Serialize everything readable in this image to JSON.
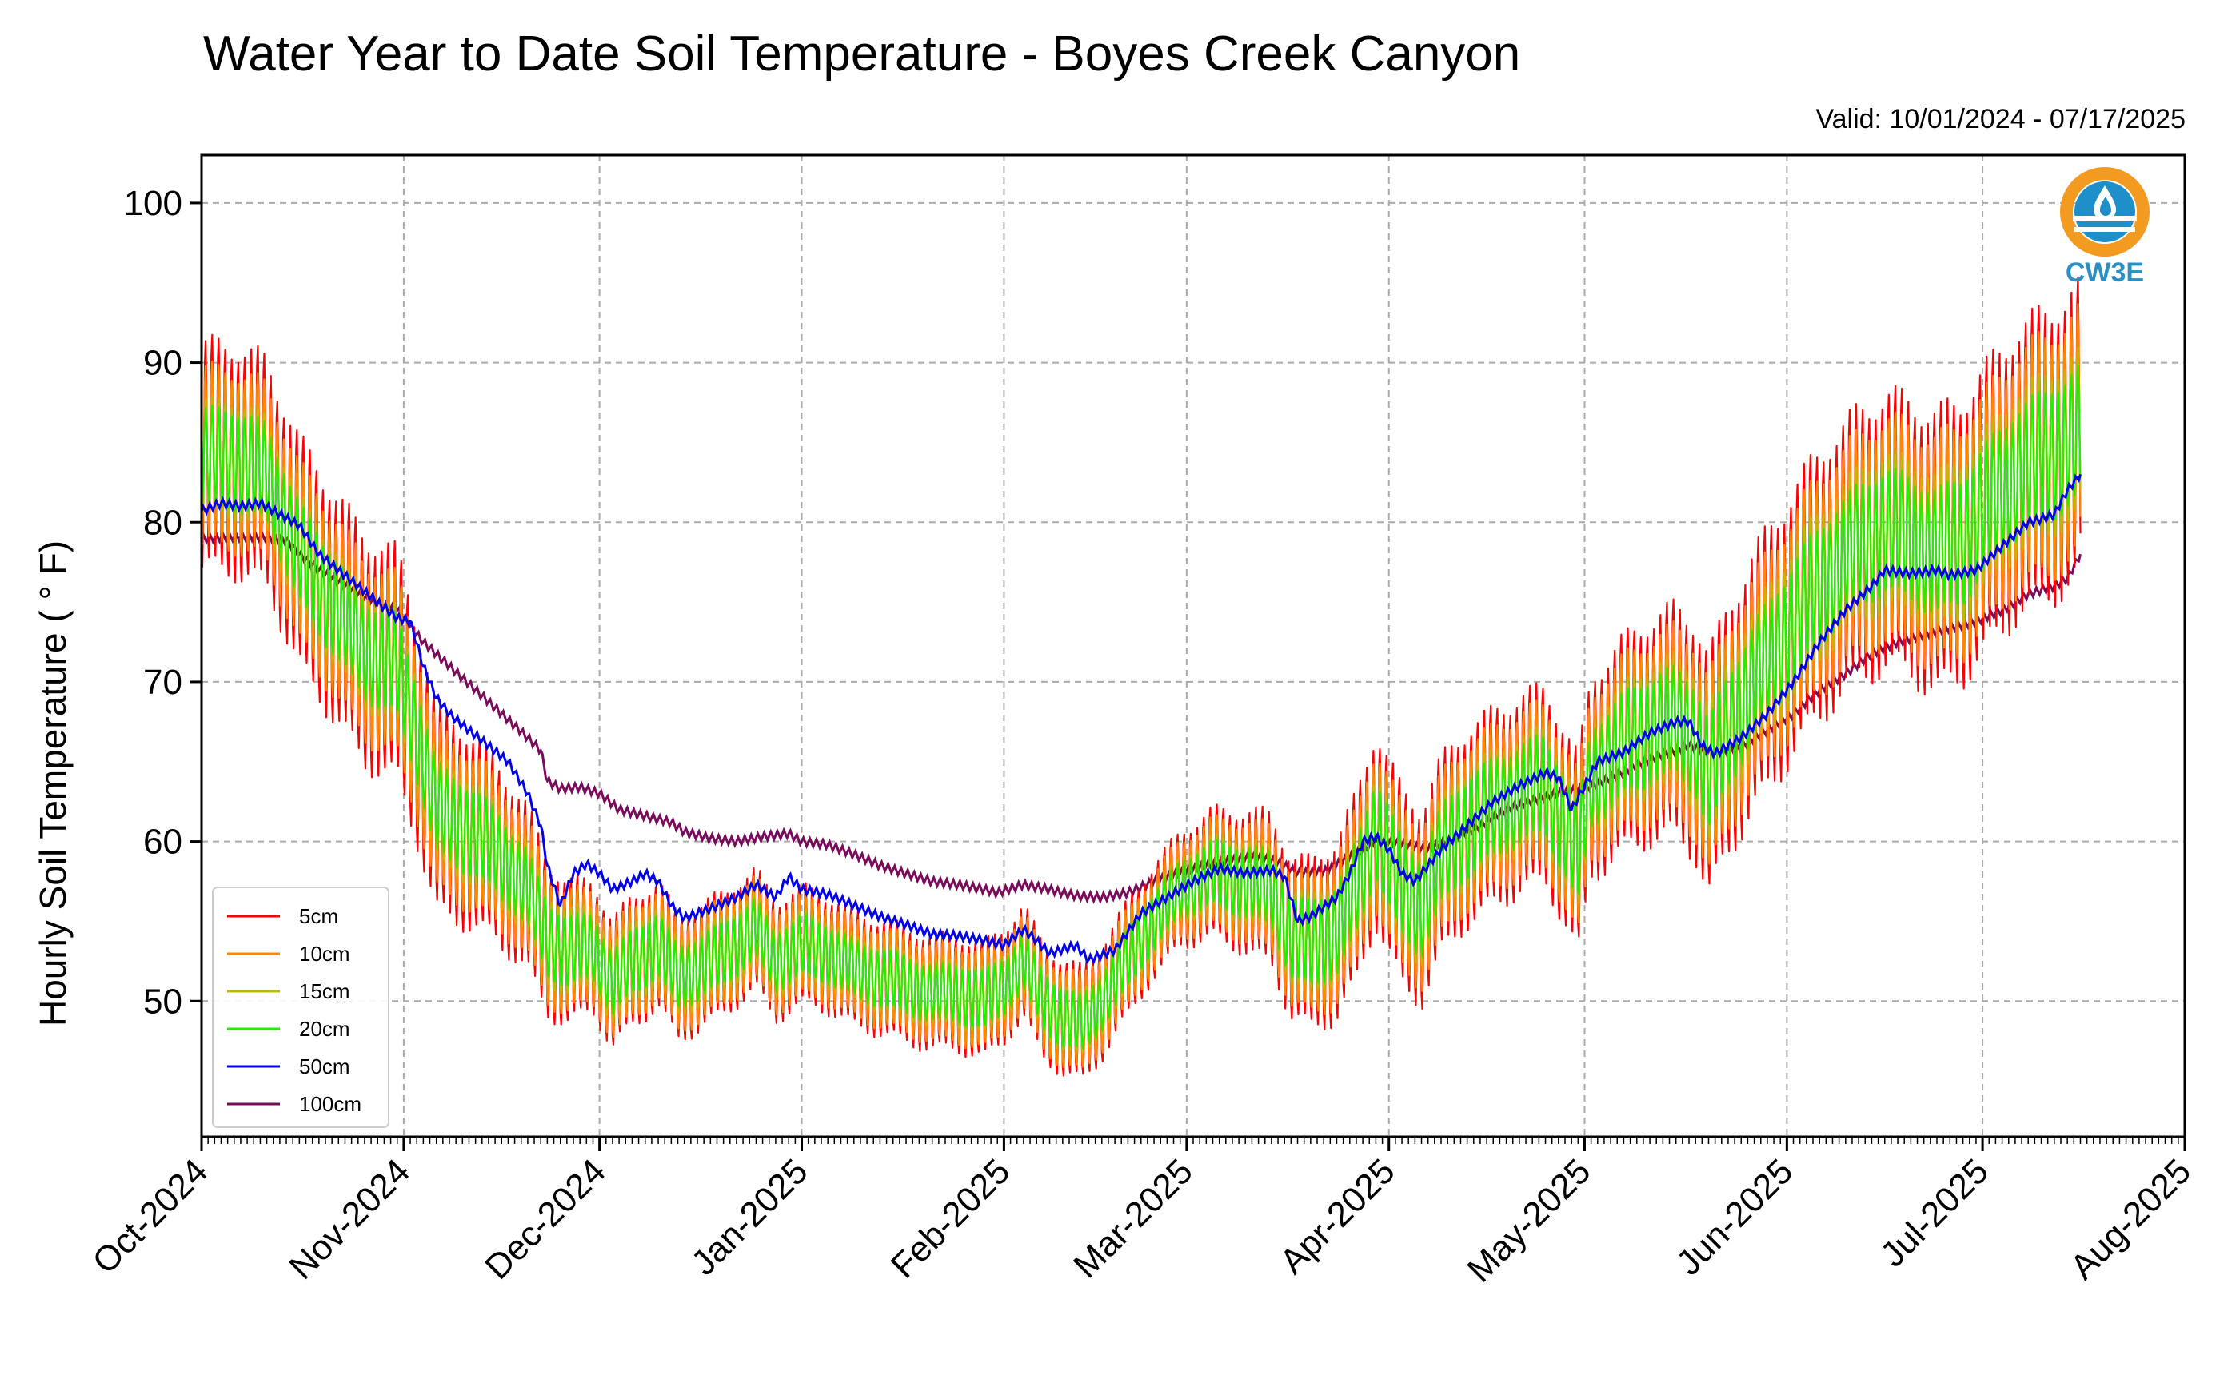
{
  "chart_data": {
    "type": "line",
    "title": "Water Year to Date Soil Temperature - Boyes Creek Canyon",
    "subtitle": "Valid: 10/01/2024 - 07/17/2025",
    "ylabel": "Hourly Soil Temperature ( ° F)",
    "xlabel": "",
    "ylim": [
      41.5,
      103
    ],
    "xlim_day": [
      0,
      304
    ],
    "yticks": [
      50,
      60,
      70,
      80,
      90,
      100
    ],
    "xtick_labels": [
      "Oct-2024",
      "Nov-2024",
      "Dec-2024",
      "Jan-2025",
      "Feb-2025",
      "Mar-2025",
      "Apr-2025",
      "May-2025",
      "Jun-2025",
      "Jul-2025",
      "Aug-2025"
    ],
    "xtick_days": [
      0,
      31,
      61,
      92,
      123,
      151,
      182,
      212,
      243,
      273,
      304
    ],
    "data_end_day": 288,
    "grid": true,
    "legend_position": "lower-left",
    "logo_text": "CW3E",
    "series": [
      {
        "name": "5cm",
        "color": "#ff0000",
        "amp": [
          [
            0,
            14
          ],
          [
            30,
            14
          ],
          [
            60,
            8
          ],
          [
            100,
            7
          ],
          [
            150,
            7
          ],
          [
            180,
            12
          ],
          [
            210,
            12
          ],
          [
            240,
            16
          ],
          [
            288,
            18
          ]
        ]
      },
      {
        "name": "10cm",
        "color": "#ff8800",
        "amp": [
          [
            0,
            11
          ],
          [
            30,
            11
          ],
          [
            60,
            7
          ],
          [
            100,
            6
          ],
          [
            150,
            6
          ],
          [
            180,
            10
          ],
          [
            210,
            10
          ],
          [
            240,
            13
          ],
          [
            288,
            15
          ]
        ]
      },
      {
        "name": "15cm",
        "color": "#bbbb00",
        "amp": [
          [
            0,
            7
          ],
          [
            30,
            7
          ],
          [
            60,
            5
          ],
          [
            100,
            4
          ],
          [
            150,
            4
          ],
          [
            180,
            7
          ],
          [
            210,
            7
          ],
          [
            240,
            9
          ],
          [
            288,
            10
          ]
        ]
      },
      {
        "name": "20cm",
        "color": "#22ee00",
        "amp": [
          [
            0,
            6
          ],
          [
            30,
            6
          ],
          [
            60,
            4
          ],
          [
            100,
            3.5
          ],
          [
            150,
            3.5
          ],
          [
            180,
            6
          ],
          [
            210,
            6
          ],
          [
            240,
            7
          ],
          [
            288,
            8
          ]
        ]
      },
      {
        "name": "50cm",
        "color": "#0000ee",
        "points": [
          [
            0,
            80.7
          ],
          [
            3,
            81.2
          ],
          [
            6,
            81.0
          ],
          [
            9,
            81.2
          ],
          [
            12,
            80.5
          ],
          [
            15,
            79.8
          ],
          [
            18,
            78.0
          ],
          [
            21,
            77.0
          ],
          [
            24,
            76.0
          ],
          [
            27,
            75.0
          ],
          [
            30,
            74.0
          ],
          [
            32,
            73.8
          ],
          [
            34,
            71.0
          ],
          [
            36,
            69.0
          ],
          [
            38,
            68.0
          ],
          [
            40,
            67.3
          ],
          [
            44,
            66.0
          ],
          [
            47,
            65.0
          ],
          [
            50,
            63.0
          ],
          [
            52,
            61.0
          ],
          [
            53,
            58.5
          ],
          [
            55,
            56.0
          ],
          [
            57,
            58.0
          ],
          [
            59,
            58.6
          ],
          [
            61,
            58.0
          ],
          [
            63,
            57.0
          ],
          [
            66,
            57.5
          ],
          [
            68,
            58.0
          ],
          [
            70,
            57.5
          ],
          [
            72,
            56.0
          ],
          [
            74,
            55.2
          ],
          [
            78,
            55.8
          ],
          [
            82,
            56.5
          ],
          [
            85,
            57.3
          ],
          [
            88,
            56.5
          ],
          [
            90,
            57.8
          ],
          [
            92,
            57.0
          ],
          [
            96,
            56.7
          ],
          [
            100,
            56.0
          ],
          [
            104,
            55.3
          ],
          [
            108,
            54.8
          ],
          [
            112,
            54.2
          ],
          [
            116,
            54.1
          ],
          [
            120,
            53.8
          ],
          [
            123,
            53.5
          ],
          [
            126,
            54.5
          ],
          [
            128,
            53.8
          ],
          [
            130,
            53.0
          ],
          [
            134,
            53.5
          ],
          [
            136,
            52.6
          ],
          [
            140,
            53.2
          ],
          [
            144,
            55.5
          ],
          [
            148,
            56.5
          ],
          [
            150,
            57.0
          ],
          [
            152,
            57.5
          ],
          [
            156,
            58.3
          ],
          [
            160,
            58.0
          ],
          [
            164,
            58.2
          ],
          [
            166,
            57.8
          ],
          [
            168,
            55.0
          ],
          [
            170,
            55.3
          ],
          [
            174,
            56.5
          ],
          [
            176,
            58.0
          ],
          [
            178,
            60.0
          ],
          [
            180,
            60.3
          ],
          [
            182,
            59.5
          ],
          [
            184,
            58.0
          ],
          [
            186,
            57.5
          ],
          [
            190,
            59.5
          ],
          [
            194,
            61.0
          ],
          [
            198,
            62.5
          ],
          [
            202,
            63.5
          ],
          [
            206,
            64.3
          ],
          [
            208,
            64.0
          ],
          [
            210,
            62.0
          ],
          [
            212,
            63.5
          ],
          [
            214,
            65.0
          ],
          [
            218,
            65.6
          ],
          [
            222,
            66.8
          ],
          [
            226,
            67.5
          ],
          [
            228,
            67.5
          ],
          [
            230,
            66.0
          ],
          [
            232,
            65.5
          ],
          [
            236,
            66.5
          ],
          [
            240,
            68.0
          ],
          [
            244,
            70.0
          ],
          [
            248,
            72.5
          ],
          [
            252,
            74.5
          ],
          [
            256,
            76.0
          ],
          [
            258,
            77.0
          ],
          [
            262,
            76.8
          ],
          [
            266,
            77.0
          ],
          [
            268,
            76.7
          ],
          [
            272,
            77.0
          ],
          [
            276,
            78.5
          ],
          [
            280,
            80.0
          ],
          [
            282,
            80.2
          ],
          [
            284,
            80.5
          ],
          [
            286,
            82.0
          ],
          [
            288,
            83.0
          ]
        ]
      },
      {
        "name": "100cm",
        "color": "#7a0a5a",
        "points": [
          [
            0,
            79.0
          ],
          [
            5,
            79.1
          ],
          [
            10,
            79.1
          ],
          [
            13,
            78.9
          ],
          [
            15,
            78.0
          ],
          [
            18,
            77.0
          ],
          [
            22,
            76.0
          ],
          [
            26,
            75.0
          ],
          [
            30,
            74.5
          ],
          [
            34,
            72.5
          ],
          [
            38,
            71.0
          ],
          [
            42,
            69.5
          ],
          [
            46,
            68.0
          ],
          [
            50,
            66.5
          ],
          [
            52,
            65.7
          ],
          [
            53,
            63.8
          ],
          [
            55,
            63.3
          ],
          [
            58,
            63.4
          ],
          [
            61,
            63.0
          ],
          [
            64,
            62.0
          ],
          [
            68,
            61.6
          ],
          [
            72,
            61.2
          ],
          [
            74,
            60.6
          ],
          [
            78,
            60.2
          ],
          [
            82,
            60.0
          ],
          [
            86,
            60.3
          ],
          [
            90,
            60.5
          ],
          [
            92,
            60.0
          ],
          [
            96,
            59.8
          ],
          [
            100,
            59.2
          ],
          [
            104,
            58.5
          ],
          [
            108,
            58.0
          ],
          [
            112,
            57.5
          ],
          [
            116,
            57.3
          ],
          [
            120,
            57.0
          ],
          [
            122,
            56.8
          ],
          [
            126,
            57.3
          ],
          [
            130,
            57.0
          ],
          [
            134,
            56.6
          ],
          [
            138,
            56.5
          ],
          [
            142,
            56.8
          ],
          [
            146,
            57.5
          ],
          [
            150,
            58.0
          ],
          [
            154,
            58.5
          ],
          [
            158,
            58.8
          ],
          [
            162,
            59.0
          ],
          [
            164,
            58.8
          ],
          [
            166,
            58.5
          ],
          [
            168,
            58.0
          ],
          [
            172,
            58.1
          ],
          [
            176,
            59.0
          ],
          [
            180,
            60.0
          ],
          [
            184,
            59.8
          ],
          [
            188,
            59.5
          ],
          [
            192,
            60.2
          ],
          [
            196,
            61.0
          ],
          [
            200,
            62.0
          ],
          [
            204,
            62.6
          ],
          [
            208,
            63.0
          ],
          [
            212,
            63.3
          ],
          [
            216,
            64.0
          ],
          [
            220,
            64.8
          ],
          [
            224,
            65.5
          ],
          [
            228,
            66.0
          ],
          [
            232,
            65.5
          ],
          [
            236,
            66.0
          ],
          [
            240,
            67.0
          ],
          [
            244,
            68.0
          ],
          [
            248,
            69.5
          ],
          [
            252,
            70.5
          ],
          [
            256,
            71.8
          ],
          [
            260,
            72.5
          ],
          [
            264,
            73.0
          ],
          [
            268,
            73.4
          ],
          [
            272,
            73.8
          ],
          [
            276,
            74.5
          ],
          [
            280,
            75.5
          ],
          [
            284,
            76.0
          ],
          [
            286,
            76.5
          ],
          [
            288,
            78.0
          ]
        ]
      }
    ],
    "shallow_baseline": [
      [
        0,
        84
      ],
      [
        5,
        84
      ],
      [
        10,
        83
      ],
      [
        15,
        78
      ],
      [
        20,
        75
      ],
      [
        25,
        72
      ],
      [
        30,
        71
      ],
      [
        33,
        67
      ],
      [
        36,
        62
      ],
      [
        40,
        61
      ],
      [
        45,
        59.5
      ],
      [
        50,
        57
      ],
      [
        53,
        54
      ],
      [
        56,
        53
      ],
      [
        60,
        53.5
      ],
      [
        63,
        51
      ],
      [
        66,
        52.5
      ],
      [
        70,
        53.5
      ],
      [
        73,
        51.5
      ],
      [
        76,
        52
      ],
      [
        80,
        53
      ],
      [
        85,
        54.5
      ],
      [
        88,
        52.5
      ],
      [
        92,
        53.5
      ],
      [
        96,
        53
      ],
      [
        100,
        52
      ],
      [
        104,
        51.5
      ],
      [
        108,
        51
      ],
      [
        112,
        50.5
      ],
      [
        116,
        50.5
      ],
      [
        120,
        50
      ],
      [
        123,
        51
      ],
      [
        126,
        52.5
      ],
      [
        129,
        50
      ],
      [
        132,
        49
      ],
      [
        135,
        48.5
      ],
      [
        138,
        50
      ],
      [
        141,
        52
      ],
      [
        145,
        54.5
      ],
      [
        150,
        57
      ],
      [
        155,
        58
      ],
      [
        160,
        57.5
      ],
      [
        164,
        57
      ],
      [
        167,
        54
      ],
      [
        170,
        53.5
      ],
      [
        174,
        54.5
      ],
      [
        177,
        57
      ],
      [
        180,
        61
      ],
      [
        182,
        59
      ],
      [
        184,
        57
      ],
      [
        187,
        56
      ],
      [
        190,
        59
      ],
      [
        194,
        61
      ],
      [
        198,
        62
      ],
      [
        202,
        63
      ],
      [
        206,
        63.5
      ],
      [
        209,
        61
      ],
      [
        211,
        59
      ],
      [
        213,
        64
      ],
      [
        218,
        66
      ],
      [
        222,
        67
      ],
      [
        226,
        67.5
      ],
      [
        229,
        66.5
      ],
      [
        231,
        64
      ],
      [
        234,
        67
      ],
      [
        238,
        70
      ],
      [
        242,
        72.5
      ],
      [
        246,
        75
      ],
      [
        250,
        77
      ],
      [
        254,
        78.5
      ],
      [
        258,
        79.5
      ],
      [
        262,
        79
      ],
      [
        266,
        78
      ],
      [
        270,
        79
      ],
      [
        274,
        81
      ],
      [
        278,
        83
      ],
      [
        282,
        84
      ],
      [
        286,
        85
      ],
      [
        288,
        85.5
      ]
    ]
  }
}
